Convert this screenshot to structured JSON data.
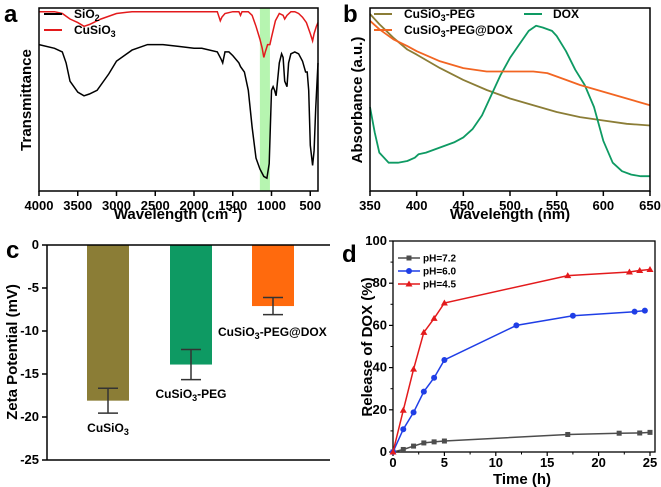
{
  "chart_data": [
    {
      "panel": "a",
      "type": "line",
      "title": "",
      "xlabel": "Wavelength (cm-1)",
      "ylabel": "Transmittance",
      "xlim": [
        4000,
        400
      ],
      "xticks": [
        "4000",
        "3500",
        "3000",
        "2500",
        "2000",
        "1500",
        "1000",
        "500"
      ],
      "ylim": [
        0,
        1
      ],
      "y_units": "relative (arbitrary)",
      "highlight_band": {
        "from": 1150,
        "to": 1020,
        "color": "#b6f5b0"
      },
      "legend": "top-left",
      "series": [
        {
          "name": "SiO2",
          "color": "#000000",
          "x": [
            4000,
            3800,
            3700,
            3650,
            3600,
            3500,
            3420,
            3350,
            3250,
            3100,
            3000,
            2800,
            2600,
            2400,
            2200,
            2000,
            1900,
            1700,
            1650,
            1630,
            1600,
            1550,
            1500,
            1420,
            1400,
            1350,
            1300,
            1250,
            1200,
            1150,
            1100,
            1060,
            1030,
            1000,
            980,
            960,
            940,
            900,
            870,
            850,
            830,
            800,
            780,
            750,
            700,
            650,
            600,
            560,
            540,
            520,
            500,
            470,
            450,
            430,
            400
          ],
          "y": [
            0.8,
            0.78,
            0.76,
            0.7,
            0.6,
            0.54,
            0.52,
            0.53,
            0.55,
            0.64,
            0.71,
            0.77,
            0.8,
            0.8,
            0.79,
            0.78,
            0.78,
            0.76,
            0.72,
            0.7,
            0.76,
            0.76,
            0.74,
            0.7,
            0.68,
            0.65,
            0.55,
            0.35,
            0.18,
            0.12,
            0.08,
            0.07,
            0.15,
            0.55,
            0.57,
            0.55,
            0.52,
            0.7,
            0.75,
            0.73,
            0.6,
            0.57,
            0.7,
            0.75,
            0.76,
            0.75,
            0.71,
            0.65,
            0.65,
            0.55,
            0.25,
            0.14,
            0.22,
            0.45,
            0.7
          ]
        },
        {
          "name": "CuSiO3",
          "color": "#e31a1c",
          "x": [
            4000,
            3800,
            3700,
            3600,
            3500,
            3420,
            3350,
            3200,
            3000,
            2800,
            2500,
            2000,
            1700,
            1660,
            1640,
            1600,
            1500,
            1420,
            1400,
            1380,
            1300,
            1250,
            1200,
            1150,
            1120,
            1100,
            1080,
            1050,
            1020,
            1000,
            950,
            900,
            850,
            830,
            800,
            750,
            700,
            650,
            600,
            550,
            500,
            470,
            450,
            420,
            400
          ],
          "y": [
            0.98,
            0.98,
            0.97,
            0.94,
            0.92,
            0.9,
            0.91,
            0.94,
            0.97,
            0.98,
            0.98,
            0.98,
            0.98,
            0.93,
            0.95,
            0.97,
            0.98,
            0.98,
            0.96,
            0.98,
            0.98,
            0.96,
            0.9,
            0.83,
            0.78,
            0.73,
            0.76,
            0.8,
            0.8,
            0.84,
            0.93,
            0.97,
            0.96,
            0.94,
            0.96,
            0.98,
            0.98,
            0.97,
            0.95,
            0.92,
            0.86,
            0.82,
            0.86,
            0.9,
            0.92
          ]
        }
      ]
    },
    {
      "panel": "b",
      "type": "line",
      "title": "",
      "xlabel": "Wavelength (nm)",
      "ylabel": "Absorbance (a.u.)",
      "xlim": [
        350,
        650
      ],
      "xticks": [
        "350",
        "400",
        "450",
        "500",
        "550",
        "600",
        "650"
      ],
      "ylim": [
        0,
        1
      ],
      "y_units": "relative (arbitrary)",
      "legend": "top (two columns)",
      "series": [
        {
          "name": "CuSiO3-PEG",
          "color": "#8b7d36",
          "x": [
            350,
            360,
            375,
            390,
            400,
            425,
            450,
            475,
            500,
            525,
            550,
            575,
            600,
            625,
            650
          ],
          "y": [
            1.0,
            0.94,
            0.86,
            0.79,
            0.76,
            0.68,
            0.61,
            0.55,
            0.5,
            0.46,
            0.42,
            0.39,
            0.37,
            0.35,
            0.34
          ]
        },
        {
          "name": "DOX",
          "color": "#0e9a63",
          "x": [
            350,
            355,
            360,
            370,
            380,
            390,
            398,
            402,
            410,
            425,
            440,
            450,
            460,
            470,
            480,
            490,
            500,
            510,
            520,
            528,
            535,
            545,
            550,
            560,
            570,
            580,
            590,
            600,
            610,
            620,
            630,
            640,
            650
          ],
          "y": [
            0.45,
            0.3,
            0.18,
            0.12,
            0.12,
            0.13,
            0.15,
            0.17,
            0.18,
            0.21,
            0.24,
            0.27,
            0.32,
            0.4,
            0.52,
            0.64,
            0.74,
            0.82,
            0.9,
            0.93,
            0.92,
            0.9,
            0.87,
            0.78,
            0.67,
            0.58,
            0.45,
            0.25,
            0.12,
            0.07,
            0.05,
            0.04,
            0.04
          ]
        },
        {
          "name": "CuSiO3-PEG@DOX",
          "color": "#f26522",
          "x": [
            350,
            360,
            375,
            390,
            400,
            425,
            450,
            475,
            500,
            525,
            540,
            550,
            560,
            575,
            600,
            625,
            650
          ],
          "y": [
            0.96,
            0.91,
            0.85,
            0.81,
            0.78,
            0.72,
            0.68,
            0.66,
            0.66,
            0.66,
            0.65,
            0.63,
            0.61,
            0.58,
            0.54,
            0.5,
            0.46
          ]
        }
      ]
    },
    {
      "panel": "c",
      "type": "bar",
      "title": "",
      "xlabel": "",
      "ylabel": "Zeta Potential (mV)",
      "ylim": [
        -25,
        0
      ],
      "yticks": [
        "0",
        "-5",
        "-10",
        "-15",
        "-20",
        "-25"
      ],
      "categories": [
        "CuSiO3",
        "CuSiO3-PEG",
        "CuSiO3-PEG@DOX"
      ],
      "values": [
        -18.1,
        -13.9,
        -7.1
      ],
      "errors": [
        1.45,
        1.75,
        1.0
      ],
      "colors": [
        "#8b7d36",
        "#0e9a63",
        "#ff6a0d"
      ]
    },
    {
      "panel": "d",
      "type": "line",
      "title": "",
      "xlabel": "Time (h)",
      "ylabel": "Release of DOX (%)",
      "xlim": [
        0,
        25
      ],
      "ylim": [
        0,
        100
      ],
      "xticks": [
        "0",
        "5",
        "10",
        "15",
        "20",
        "25"
      ],
      "yticks": [
        "0",
        "20",
        "40",
        "60",
        "80",
        "100"
      ],
      "legend": "top-left",
      "series": [
        {
          "name": "pH=7.2",
          "color": "#4d4d4d",
          "marker": "square",
          "x": [
            0,
            1,
            2,
            3,
            4,
            5,
            17,
            22,
            24,
            25
          ],
          "y": [
            0,
            1.2,
            2.8,
            4.3,
            4.8,
            5.2,
            8.3,
            8.9,
            9.0,
            9.3
          ]
        },
        {
          "name": "pH=6.0",
          "color": "#1f3ee6",
          "marker": "circle",
          "x": [
            0,
            1,
            2,
            3,
            4,
            5,
            12,
            17.5,
            23.5,
            24.5
          ],
          "y": [
            0,
            10.8,
            18.8,
            28.6,
            35.2,
            43.6,
            60.0,
            64.6,
            66.5,
            67.0
          ]
        },
        {
          "name": "pH=4.5",
          "color": "#e31a1c",
          "marker": "triangle",
          "x": [
            0,
            1,
            2,
            3,
            4,
            5,
            17,
            23,
            24,
            25
          ],
          "y": [
            0,
            19.8,
            39.3,
            56.7,
            63.3,
            70.6,
            83.6,
            85.3,
            86.0,
            86.5
          ]
        }
      ]
    }
  ],
  "panel_letters": [
    "a",
    "b",
    "c",
    "d"
  ],
  "labels": {
    "a_xlabel_main": "Wavelength (cm",
    "a_xlabel_sup": "-1",
    "a_xlabel_end": ")",
    "a_ylabel": "Transmittance",
    "a_legend": [
      {
        "base": "SiO",
        "sub": "2"
      },
      {
        "base": "CuSiO",
        "sub": "3"
      }
    ],
    "b_xlabel": "Wavelength (nm)",
    "b_ylabel": "Absorbance (a.u.)",
    "b_legend": [
      {
        "pre": "CuSiO",
        "sub": "3",
        "post": "-PEG"
      },
      {
        "pre": "DOX",
        "sub": "",
        "post": ""
      },
      {
        "pre": "CuSiO",
        "sub": "3",
        "post": "-PEG@DOX"
      }
    ],
    "c_ylabel": "Zeta Potential (mV)",
    "c_cats": [
      {
        "pre": "CuSiO",
        "sub": "3",
        "post": ""
      },
      {
        "pre": "CuSiO",
        "sub": "3",
        "post": "-PEG"
      },
      {
        "pre": "CuSiO",
        "sub": "3",
        "post": "-PEG@DOX"
      }
    ],
    "d_xlabel": "Time (h)",
    "d_ylabel": "Release of DOX (%)"
  }
}
